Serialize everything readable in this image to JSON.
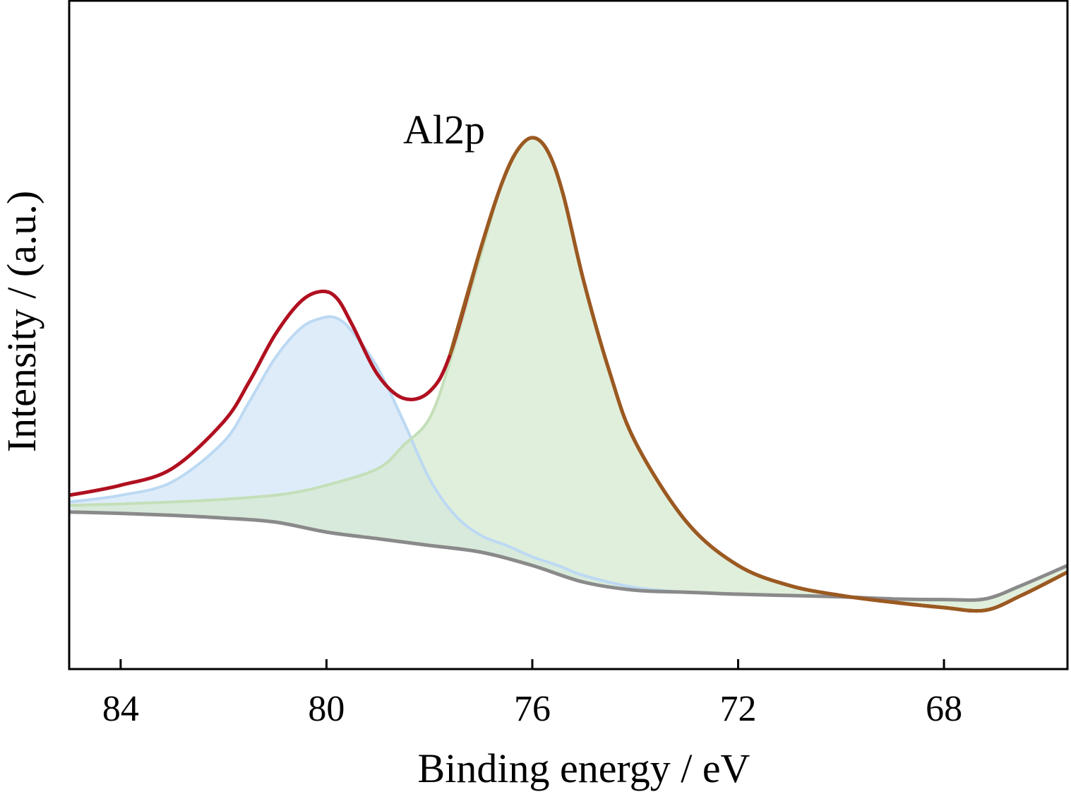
{
  "chart_data": {
    "type": "line",
    "title": "",
    "annotations": [
      "Al2p"
    ],
    "xlabel": "Binding energy / eV",
    "ylabel": "Intensity / (a.u.)",
    "x_reversed": true,
    "xlim": [
      85,
      65.6
    ],
    "ylim": [
      0,
      100
    ],
    "x_ticks": [
      84,
      80,
      76,
      72,
      68
    ],
    "x_tick_labels": [
      "84",
      "80",
      "76",
      "72",
      "68"
    ],
    "y_ticks_shown": false,
    "grid": false,
    "legend": "none",
    "colors": {
      "envelope": "#b01020",
      "background": "#8a8a8a",
      "peak_80": "#d8e9f8",
      "peak_80_edge": "#bcd9f3",
      "peak_76": "#d6ead0",
      "peak_76_edge": "#c4dfb8",
      "envelope_over_green": "#9a5a20"
    },
    "series": [
      {
        "role": "envelope",
        "x": [
          85,
          84,
          83,
          82,
          81.5,
          81,
          80.5,
          80.1,
          79.8,
          79.5,
          79,
          78.5,
          78,
          77.6,
          77,
          76.6,
          76.3,
          76,
          75.7,
          75.4,
          75,
          74.5,
          74,
          73,
          72,
          71,
          70,
          69,
          68,
          67.2,
          66.5,
          65.6
        ],
        "y": [
          26,
          27.5,
          30,
          37,
          43,
          50,
          55,
          56.5,
          55.5,
          51.5,
          44,
          40.5,
          41.5,
          47,
          63,
          72.5,
          77.5,
          79.5,
          77.5,
          71,
          58,
          44.5,
          34,
          22,
          15.5,
          12.5,
          11,
          10,
          9.2,
          8.8,
          11,
          14.5
        ]
      },
      {
        "role": "background",
        "x": [
          85,
          84,
          83,
          82,
          81,
          80,
          79,
          78,
          77,
          76,
          75,
          74,
          73,
          72,
          71,
          70,
          69,
          68,
          67.2,
          66.5,
          65.6
        ],
        "y": [
          23.5,
          23.3,
          23,
          22.6,
          22,
          20.5,
          19.5,
          18.5,
          17.5,
          15.5,
          13,
          11.8,
          11.5,
          11.2,
          11,
          10.8,
          10.5,
          10.4,
          10.5,
          12.5,
          15.5
        ]
      },
      {
        "role": "component",
        "center": 80,
        "x": [
          85,
          84,
          83,
          82,
          81.5,
          81,
          80.5,
          80.1,
          79.8,
          79.5,
          79,
          78.5,
          78,
          77.5,
          77,
          76.5,
          76,
          75.5,
          75,
          74,
          73
        ],
        "y": [
          25,
          26,
          28,
          34,
          40,
          46.5,
          51,
          52.5,
          52.5,
          50.5,
          45,
          37,
          28.5,
          23,
          20,
          18.5,
          16.8,
          15.5,
          14,
          12.2,
          11.5
        ]
      },
      {
        "role": "component",
        "center": 76,
        "x": [
          85,
          84,
          83,
          82,
          81,
          80.5,
          80,
          79,
          78.5,
          78,
          77.6,
          77,
          76.6,
          76.3,
          76,
          75.7,
          75.4,
          75,
          74.5,
          74,
          73,
          72,
          71,
          70,
          69,
          68,
          67.2,
          66.5,
          65.6
        ],
        "y": [
          24.5,
          24.7,
          25,
          25.4,
          26,
          26.6,
          27.5,
          30,
          33.5,
          37.5,
          46,
          62,
          72.5,
          77.5,
          79.5,
          77.5,
          71,
          58,
          44.5,
          34,
          22,
          15.5,
          12.5,
          11,
          10,
          9.2,
          8.8,
          11,
          14.5
        ]
      }
    ]
  }
}
